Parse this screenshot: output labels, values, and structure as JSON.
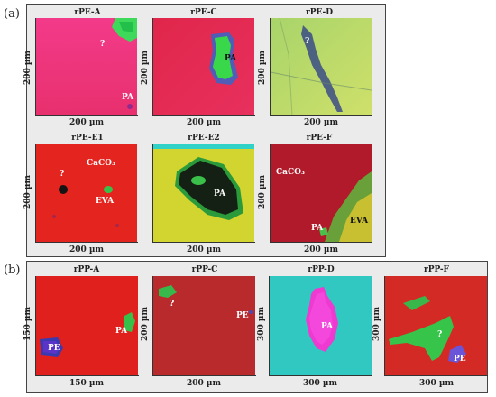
{
  "panel_a": {
    "label": "(a)",
    "tiles": [
      {
        "title": "rPE-A",
        "xlabel": "200 µm",
        "ylabel": "200 µm",
        "annotations": [
          "?",
          "PA"
        ]
      },
      {
        "title": "rPE-C",
        "xlabel": "200 µm",
        "ylabel": "200 µm",
        "annotations": [
          "PA"
        ]
      },
      {
        "title": "rPE-D",
        "xlabel": "200 µm",
        "ylabel": "200 µm",
        "annotations": [
          "?"
        ]
      },
      {
        "title": "rPE-E1",
        "xlabel": "200 µm",
        "ylabel": "200 µm",
        "annotations": [
          "?",
          "CaCO₃",
          "EVA"
        ]
      },
      {
        "title": "rPE-E2",
        "xlabel": "200 µm",
        "ylabel": "200 µm",
        "annotations": [
          "PA"
        ]
      },
      {
        "title": "rPE-F",
        "xlabel": "200 µm",
        "ylabel": "200 µm",
        "annotations": [
          "CaCO₃",
          "PA",
          "EVA"
        ]
      }
    ]
  },
  "panel_b": {
    "label": "(b)",
    "tiles": [
      {
        "title": "rPP-A",
        "xlabel": "150 µm",
        "ylabel": "150 µm",
        "annotations": [
          "PE",
          "PA"
        ]
      },
      {
        "title": "rPP-C",
        "xlabel": "200 µm",
        "ylabel": "200 µm",
        "annotations": [
          "?",
          "PE"
        ]
      },
      {
        "title": "rPP-D",
        "xlabel": "300 µm",
        "ylabel": "300 µm",
        "annotations": [
          "PA"
        ]
      },
      {
        "title": "rPP-F",
        "xlabel": "300 µm",
        "ylabel": "300 µm",
        "annotations": [
          "?",
          "PE"
        ]
      }
    ]
  }
}
